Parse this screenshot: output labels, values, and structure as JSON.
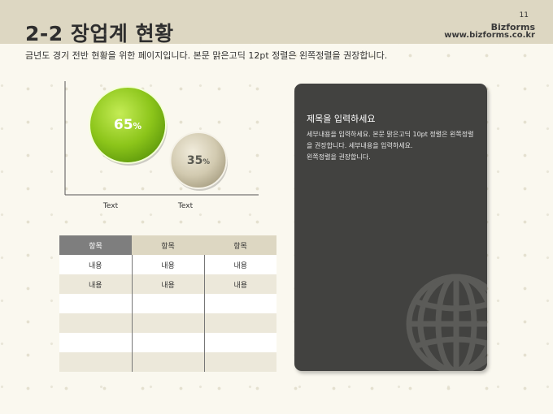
{
  "header": {
    "title": "2-2 장업계 현황",
    "page_number": "11",
    "brand": "Bizforms",
    "brand_url": "www.bizforms.co.kr"
  },
  "subtitle": "금년도 경기 전반 현황을 위한 페이지입니다. 본문 맑은고딕 12pt 정렬은 왼쪽정렬을 권장합니다.",
  "chart_data": {
    "type": "bubble",
    "categories": [
      "Text",
      "Text"
    ],
    "values": [
      65,
      35
    ],
    "value_labels": [
      "65",
      "35"
    ],
    "unit": "%",
    "colors": [
      "#8cc51a",
      "#d2cab0"
    ]
  },
  "table": {
    "headers": [
      "항목",
      "항목",
      "항목"
    ],
    "rows": [
      [
        "내용",
        "내용",
        "내용"
      ],
      [
        "내용",
        "내용",
        "내용"
      ],
      [
        "",
        "",
        ""
      ],
      [
        "",
        "",
        ""
      ],
      [
        "",
        "",
        ""
      ],
      [
        "",
        "",
        ""
      ]
    ]
  },
  "panel": {
    "title": "제목을 입력하세요",
    "body": "세부내용을 입력하세요. 본문 맑은고딕 10pt 정렬은 왼쪽정렬을 권장합니다. 세부내용을 입력하세요.\n왼쪽정렬을 권장합니다.",
    "icon": "globe-icon"
  },
  "colors": {
    "header_band": "#ddd7c2",
    "panel_bg": "#424240",
    "accent_green": "#8cc51a",
    "accent_beige": "#d2cab0"
  }
}
